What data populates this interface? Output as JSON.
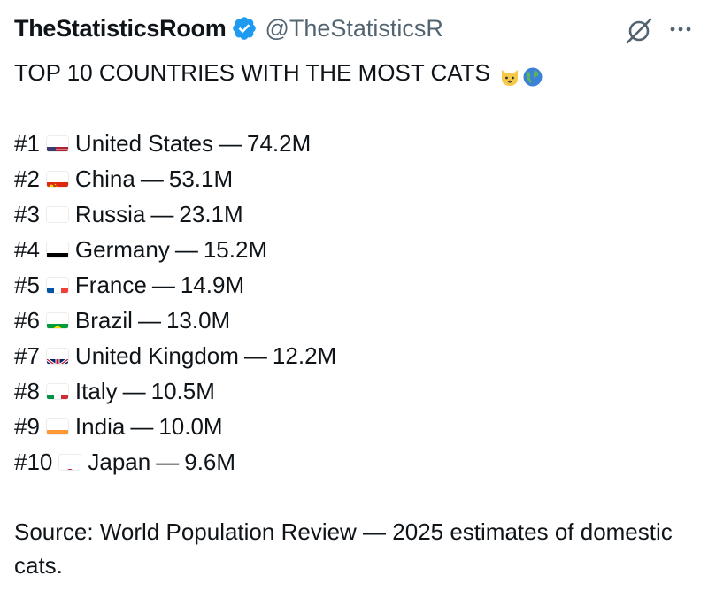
{
  "author": {
    "display_name": "TheStatisticsRoom",
    "handle": "@TheStatisticsR",
    "verified_icon": "verified-badge-icon",
    "verified_color": "#1d9bf0"
  },
  "actions": {
    "grok_icon": "grok-icon",
    "more_icon": "more-options-icon"
  },
  "tweet": {
    "title": "TOP 10 COUNTRIES WITH THE MOST CATS",
    "title_emojis": [
      "cat-face-emoji",
      "globe-emoji"
    ],
    "rankings": [
      {
        "rank": "#1",
        "flag": "us",
        "country": "United States",
        "separator": "—",
        "value": "74.2M"
      },
      {
        "rank": "#2",
        "flag": "cn",
        "country": "China",
        "separator": "—",
        "value": "53.1M"
      },
      {
        "rank": "#3",
        "flag": "ru",
        "country": "Russia",
        "separator": "—",
        "value": "23.1M"
      },
      {
        "rank": "#4",
        "flag": "de",
        "country": "Germany",
        "separator": "—",
        "value": "15.2M"
      },
      {
        "rank": "#5",
        "flag": "fr",
        "country": "France",
        "separator": "—",
        "value": "14.9M"
      },
      {
        "rank": "#6",
        "flag": "br",
        "country": "Brazil",
        "separator": "—",
        "value": "13.0M"
      },
      {
        "rank": "#7",
        "flag": "gb",
        "country": "United Kingdom",
        "separator": "—",
        "value": "12.2M"
      },
      {
        "rank": "#8",
        "flag": "it",
        "country": "Italy",
        "separator": "—",
        "value": "10.5M"
      },
      {
        "rank": "#9",
        "flag": "in",
        "country": "India",
        "separator": "—",
        "value": "10.0M"
      },
      {
        "rank": "#10",
        "flag": "jp",
        "country": "Japan",
        "separator": "—",
        "value": "9.6M"
      }
    ],
    "source": "Source: World Population Review — 2025 estimates of domestic cats."
  }
}
